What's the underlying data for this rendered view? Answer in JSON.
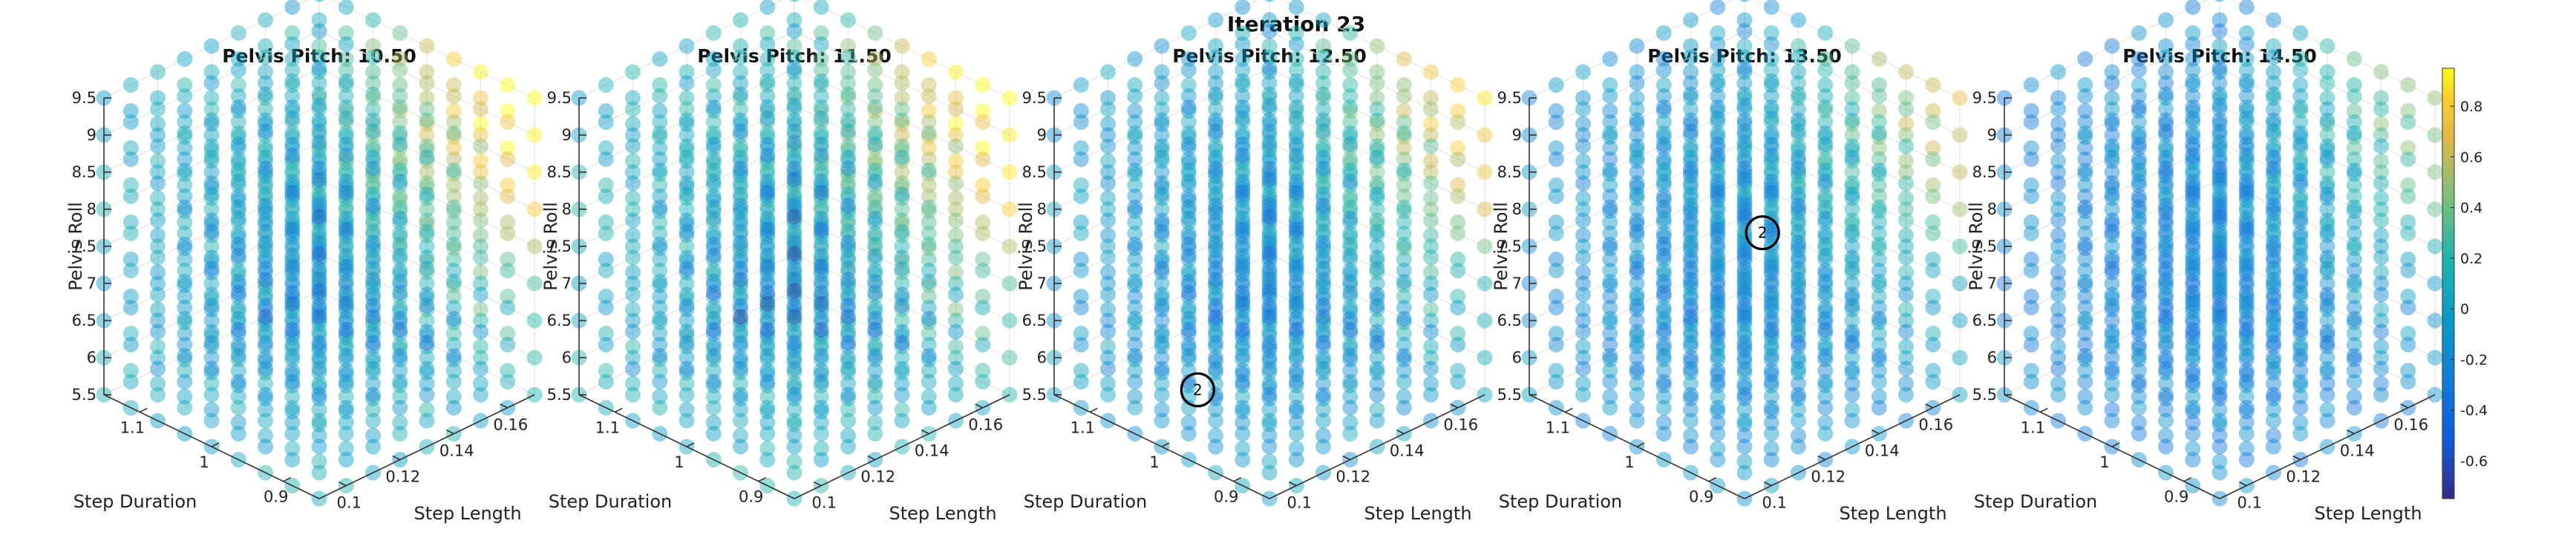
{
  "figure_title": "Iteration 23",
  "chart_data": {
    "type": "scatter",
    "projection": "3d",
    "axes": {
      "x": {
        "label": "Step Length",
        "ticks": [
          "0.1",
          "0.12",
          "0.14",
          "0.16"
        ],
        "range": [
          0.09,
          0.17
        ]
      },
      "y": {
        "label": "Step Duration",
        "ticks": [
          "0.9",
          "1",
          "1.1"
        ],
        "range": [
          0.85,
          1.15
        ]
      },
      "z": {
        "label": "Pelvis Roll",
        "ticks": [
          "5.5",
          "6",
          "6.5",
          "7",
          "7.5",
          "8",
          "8.5",
          "9",
          "9.5"
        ],
        "range": [
          5.5,
          9.5
        ]
      }
    },
    "grid": true,
    "colorbar": {
      "range": [
        -0.75,
        0.95
      ],
      "ticks": [
        "0.8",
        "0.6",
        "0.4",
        "0.2",
        "0",
        "-0.2",
        "-0.4",
        "-0.6"
      ],
      "colormap": "parula",
      "placement": "right"
    },
    "panels": [
      {
        "title": "Pelvis Pitch: 10.50",
        "base": 0.05,
        "corner_high": 0.75,
        "corner_low": -0.45,
        "marker": null
      },
      {
        "title": "Pelvis Pitch: 11.50",
        "base": 0.1,
        "corner_high": 0.75,
        "corner_low": -0.55,
        "marker": null
      },
      {
        "title": "Pelvis Pitch: 12.50",
        "base": -0.05,
        "corner_high": 0.6,
        "corner_low": -0.4,
        "marker": {
          "label": "2",
          "step_length": 0.09,
          "step_duration": 0.95,
          "pelvis_roll": 6.5
        }
      },
      {
        "title": "Pelvis Pitch: 13.50",
        "base": -0.12,
        "corner_high": 0.45,
        "corner_low": -0.3,
        "marker": {
          "label": "2",
          "step_length": 0.11,
          "step_duration": 0.9,
          "pelvis_roll": 8.5
        }
      },
      {
        "title": "Pelvis Pitch: 14.50",
        "base": -0.2,
        "corner_high": 0.3,
        "corner_low": -0.3,
        "marker": null
      }
    ]
  }
}
